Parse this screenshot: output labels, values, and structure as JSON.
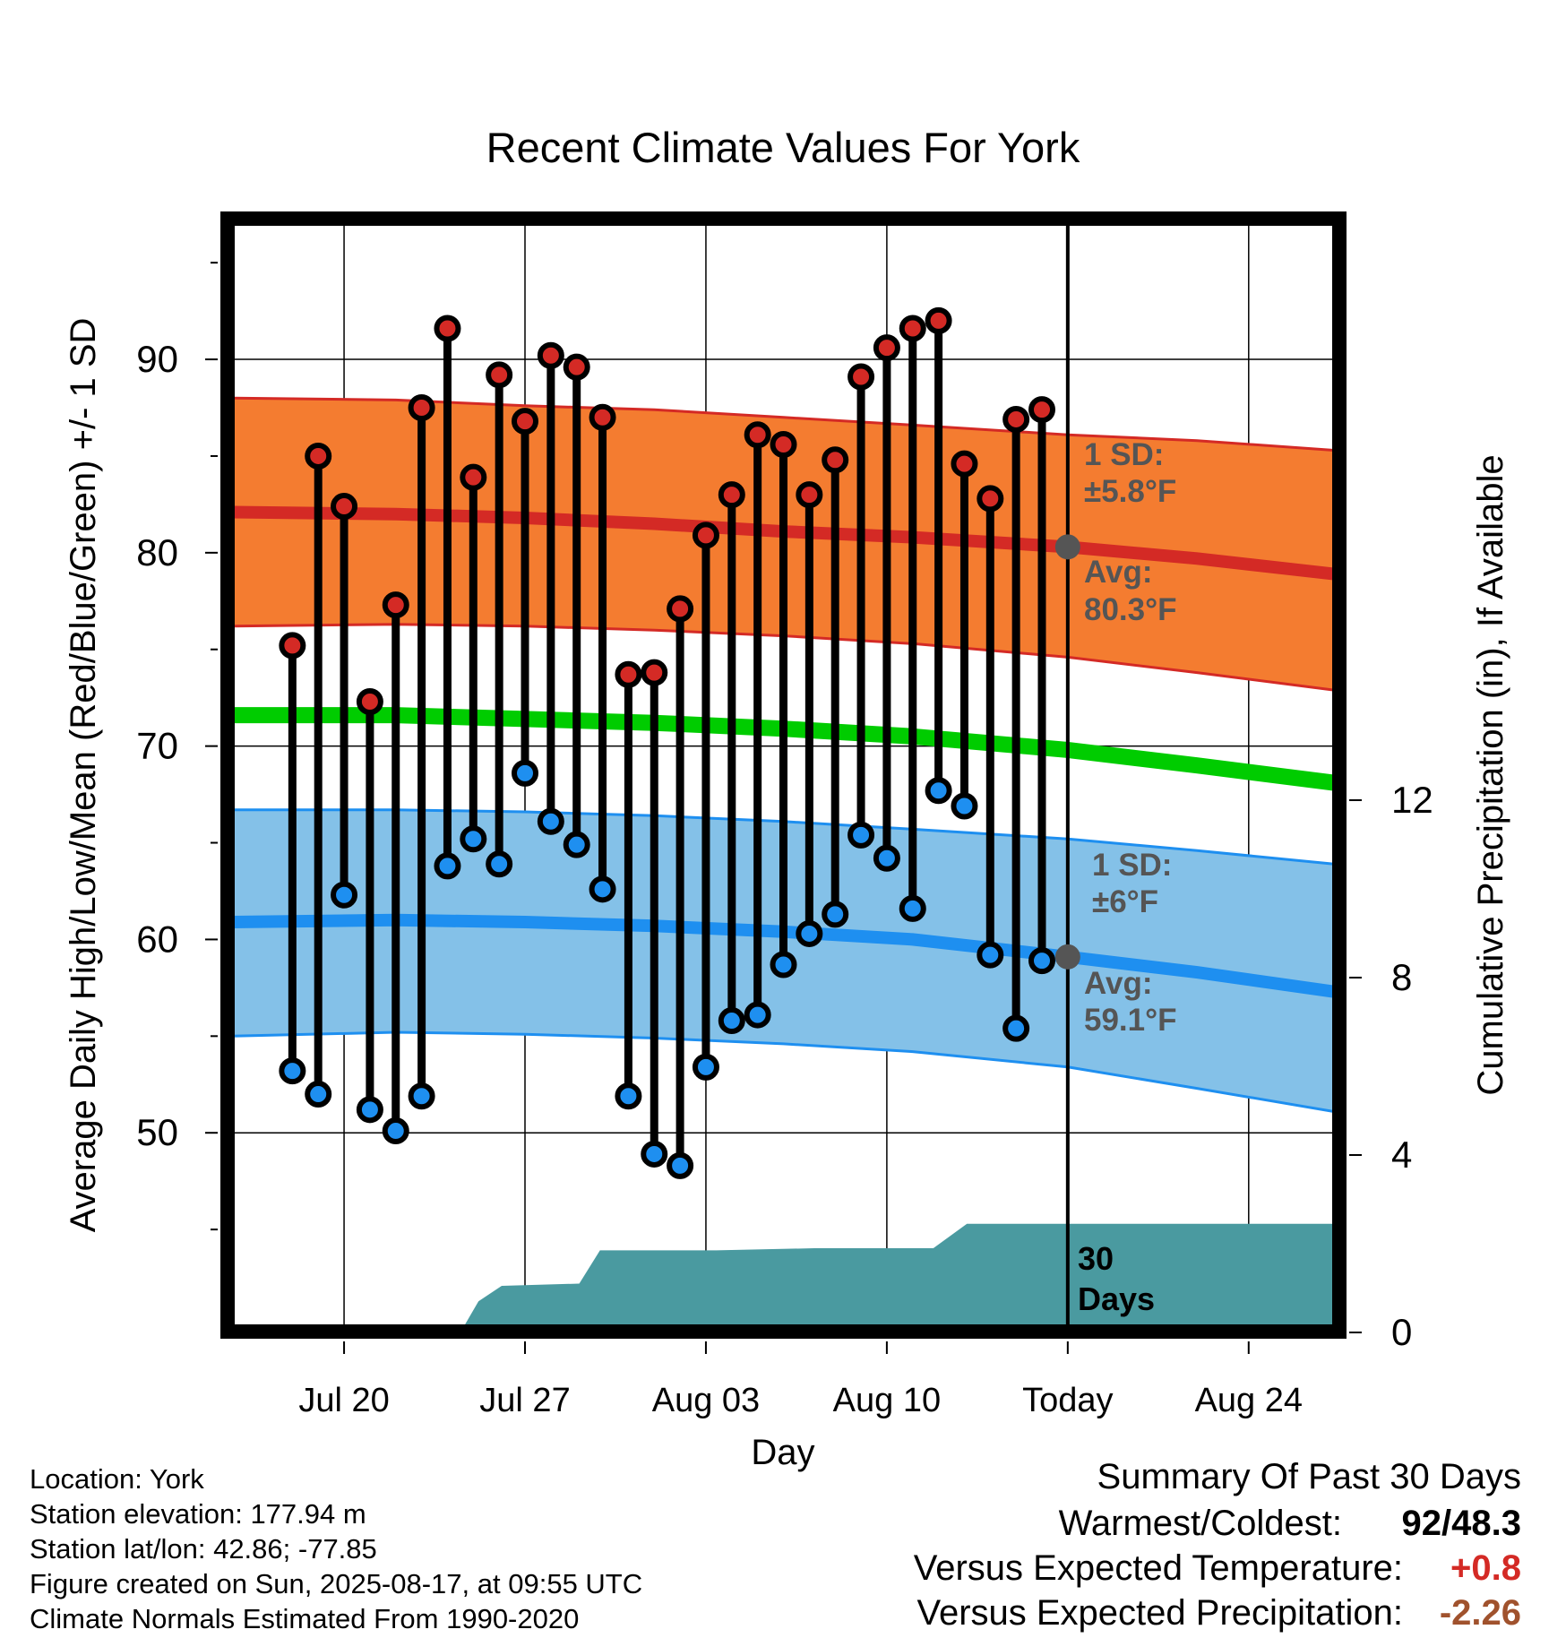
{
  "chart_data": {
    "type": "line",
    "title": "Recent Climate Values For York",
    "xlabel": "Day",
    "ylabel": "Average Daily High/Low/Mean (Red/Blue/Green) +/- 1 SD",
    "y2label": "Cumulative Precipitation (in), If Available",
    "ylim": [
      40,
      97
    ],
    "y2lim": [
      0,
      24
    ],
    "xlim": [
      -1.3,
      41.3
    ],
    "yticks": [
      50,
      60,
      70,
      80,
      90
    ],
    "y2ticks": [
      0,
      4,
      8,
      12
    ],
    "xticks": [
      {
        "day": 3,
        "label": "Jul 20"
      },
      {
        "day": 10,
        "label": "Jul 27"
      },
      {
        "day": 17,
        "label": "Aug 03"
      },
      {
        "day": 24,
        "label": "Aug 10"
      },
      {
        "day": 31,
        "label": "Today"
      },
      {
        "day": 38,
        "label": "Aug 24"
      }
    ],
    "days": [
      1,
      2,
      3,
      4,
      5,
      6,
      7,
      8,
      9,
      10,
      11,
      12,
      13,
      14,
      15,
      16,
      17,
      18,
      19,
      20,
      21,
      22,
      23,
      24,
      25,
      26,
      27,
      28,
      29,
      30
    ],
    "highs": [
      75.2,
      85,
      82.4,
      72.3,
      77.3,
      87.5,
      91.6,
      83.9,
      89.2,
      86.8,
      90.2,
      89.6,
      87,
      73.7,
      73.8,
      77.1,
      80.9,
      83,
      86.1,
      85.6,
      83,
      84.8,
      89.1,
      90.6,
      91.6,
      92,
      84.6,
      82.8,
      86.9,
      87.4
    ],
    "lows": [
      53.2,
      52,
      62.3,
      51.2,
      50.1,
      51.9,
      63.8,
      65.2,
      63.9,
      68.6,
      66.1,
      64.9,
      62.6,
      51.9,
      48.9,
      48.3,
      53.4,
      55.8,
      56.1,
      58.7,
      60.3,
      61.3,
      65.4,
      64.2,
      61.6,
      67.7,
      66.9,
      59.2,
      55.4,
      58.9
    ],
    "normals": {
      "days": [
        -1.3,
        5,
        10,
        15,
        20,
        25,
        31,
        36,
        41.3
      ],
      "high_mean": [
        82.1,
        82.0,
        81.8,
        81.5,
        81.1,
        80.8,
        80.3,
        79.7,
        78.9
      ],
      "high_upper": [
        88.0,
        87.9,
        87.6,
        87.4,
        87.0,
        86.6,
        86.1,
        85.8,
        85.3
      ],
      "high_lower": [
        76.2,
        76.3,
        76.2,
        76.0,
        75.7,
        75.3,
        74.6,
        73.8,
        72.9
      ],
      "mean": [
        71.6,
        71.6,
        71.4,
        71.2,
        70.9,
        70.5,
        69.8,
        69.0,
        68.1
      ],
      "low_mean": [
        60.9,
        61.0,
        60.9,
        60.7,
        60.4,
        60.0,
        59.1,
        58.3,
        57.3
      ],
      "low_upper": [
        66.7,
        66.7,
        66.6,
        66.4,
        66.1,
        65.7,
        65.2,
        64.6,
        63.9
      ],
      "low_lower": [
        55.0,
        55.2,
        55.1,
        54.9,
        54.6,
        54.2,
        53.4,
        52.3,
        51.1
      ]
    },
    "precip": {
      "days": [
        -1.3,
        7.5,
        8.2,
        9.1,
        12.1,
        12.9,
        17.4,
        21.2,
        25.8,
        27.1,
        41.3
      ],
      "cumulative": [
        0,
        0,
        0.7,
        1.05,
        1.1,
        1.85,
        1.85,
        1.9,
        1.9,
        2.45,
        2.45
      ]
    },
    "today_high_avg_marker": 80.3,
    "today_low_avg_marker": 59.1,
    "annotations": {
      "high_sd": [
        "1 SD:",
        "±5.8°F"
      ],
      "high_avg": [
        "Avg:",
        "80.3°F"
      ],
      "low_sd": [
        "1 SD:",
        "±6°F"
      ],
      "low_avg": [
        "Avg:",
        "59.1°F"
      ],
      "days_label": [
        "30",
        "Days"
      ]
    },
    "colors": {
      "high_band": "#f47c30",
      "high_line": "#d42a25",
      "mean_line": "#00cc00",
      "low_band": "#84c1e8",
      "low_line": "#1e8ff0",
      "precip": "#4a9aa0",
      "high_dot": "#d42a25",
      "low_dot": "#1e8ff0",
      "annotation": "#555555"
    }
  },
  "footer": {
    "location": "Location: York",
    "elevation": "Station elevation: 177.94 m",
    "latlon": "Station lat/lon: 42.86; -77.85",
    "created": "Figure created on Sun, 2025-08-17, at 09:55 UTC",
    "normals": "Climate Normals Estimated From 1990-2020"
  },
  "summary": {
    "title": "Summary Of Past 30 Days",
    "warmest_label": "Warmest/Coldest:",
    "warmest_value": "92/48.3",
    "temp_label": "Versus Expected Temperature:",
    "temp_value": "+0.8",
    "temp_color": "#d42a25",
    "precip_label": "Versus Expected Precipitation:",
    "precip_value": "-2.26",
    "precip_color": "#a0522d"
  }
}
